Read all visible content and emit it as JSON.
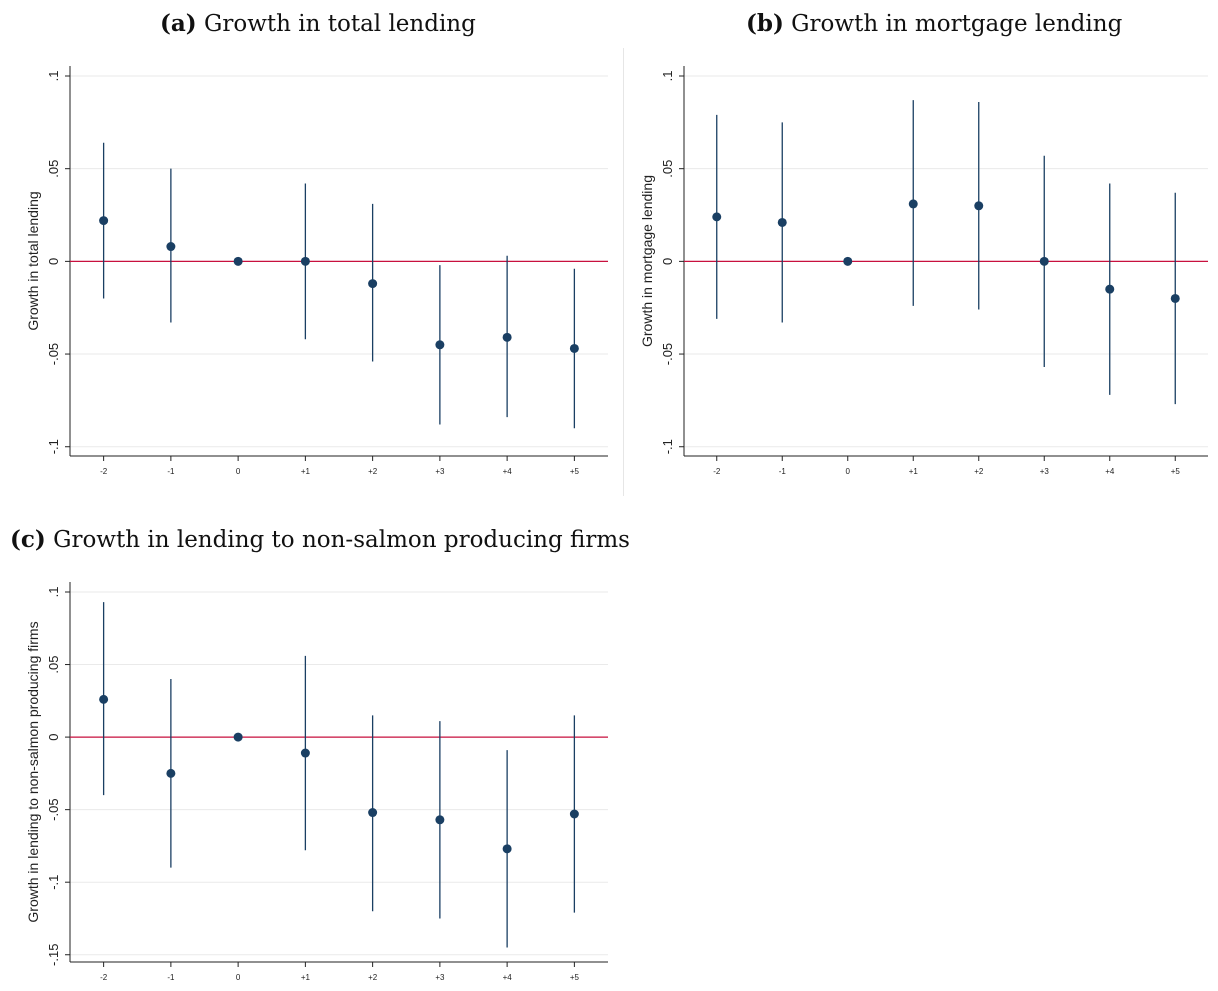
{
  "chart_data": [
    {
      "type": "scatter",
      "panel_label": "(a)",
      "title": "Growth in total lending",
      "xlabel": "",
      "ylabel": "Growth in total lending",
      "categories": [
        "-2",
        "-1",
        "0",
        "+1",
        "+2",
        "+3",
        "+4",
        "+5"
      ],
      "y_ticks": [
        ".1",
        ".05",
        "0",
        "-.05",
        "-.1"
      ],
      "y_tick_values": [
        0.1,
        0.05,
        0,
        -0.05,
        -0.1
      ],
      "ylim": [
        -0.105,
        0.1
      ],
      "reference_line": 0,
      "series": [
        {
          "values": [
            0.022,
            0.008,
            0.0,
            0.0,
            -0.012,
            -0.045,
            -0.041,
            -0.047
          ],
          "ci_low": [
            -0.02,
            -0.033,
            0.0,
            -0.042,
            -0.054,
            -0.088,
            -0.084,
            -0.09
          ],
          "ci_high": [
            0.064,
            0.05,
            0.0,
            0.042,
            0.031,
            -0.002,
            0.003,
            -0.004
          ]
        }
      ],
      "grid": true,
      "colors": {
        "point": "#1a3f63",
        "ci": "#1a3f63",
        "zero_line": "#c8103e",
        "grid": "#eaeaea"
      }
    },
    {
      "type": "scatter",
      "panel_label": "(b)",
      "title": "Growth in mortgage lending",
      "xlabel": "",
      "ylabel": "Growth in mortgage lending",
      "categories": [
        "-2",
        "-1",
        "0",
        "+1",
        "+2",
        "+3",
        "+4",
        "+5"
      ],
      "y_ticks": [
        ".1",
        ".05",
        "0",
        "-.05",
        "-.1"
      ],
      "y_tick_values": [
        0.1,
        0.05,
        0,
        -0.05,
        -0.1
      ],
      "ylim": [
        -0.105,
        0.1
      ],
      "reference_line": 0,
      "series": [
        {
          "values": [
            0.024,
            0.021,
            0.0,
            0.031,
            0.03,
            0.0,
            -0.015,
            -0.02
          ],
          "ci_low": [
            -0.031,
            -0.033,
            0.0,
            -0.024,
            -0.026,
            -0.057,
            -0.072,
            -0.077
          ],
          "ci_high": [
            0.079,
            0.075,
            0.0,
            0.087,
            0.086,
            0.057,
            0.042,
            0.037
          ]
        }
      ],
      "grid": true,
      "colors": {
        "point": "#1a3f63",
        "ci": "#1a3f63",
        "zero_line": "#c8103e",
        "grid": "#eaeaea"
      }
    },
    {
      "type": "scatter",
      "panel_label": "(c)",
      "title": "Growth in lending to non-salmon producing firms",
      "xlabel": "",
      "ylabel": "Growth in lending to non-salmon producing firms",
      "categories": [
        "-2",
        "-1",
        "0",
        "+1",
        "+2",
        "+3",
        "+4",
        "+5"
      ],
      "y_ticks": [
        ".1",
        ".05",
        "0",
        "-.05",
        "-.1",
        "-.15"
      ],
      "y_tick_values": [
        0.1,
        0.05,
        0,
        -0.05,
        -0.1,
        -0.15
      ],
      "ylim": [
        -0.155,
        0.1
      ],
      "reference_line": 0,
      "series": [
        {
          "values": [
            0.026,
            -0.025,
            0.0,
            -0.011,
            -0.052,
            -0.057,
            -0.077,
            -0.053
          ],
          "ci_low": [
            -0.04,
            -0.09,
            0.0,
            -0.078,
            -0.12,
            -0.125,
            -0.145,
            -0.121
          ],
          "ci_high": [
            0.093,
            0.04,
            0.0,
            0.056,
            0.015,
            0.011,
            -0.009,
            0.015
          ]
        }
      ],
      "grid": true,
      "colors": {
        "point": "#1a3f63",
        "ci": "#1a3f63",
        "zero_line": "#c8103e",
        "grid": "#eaeaea"
      }
    }
  ]
}
